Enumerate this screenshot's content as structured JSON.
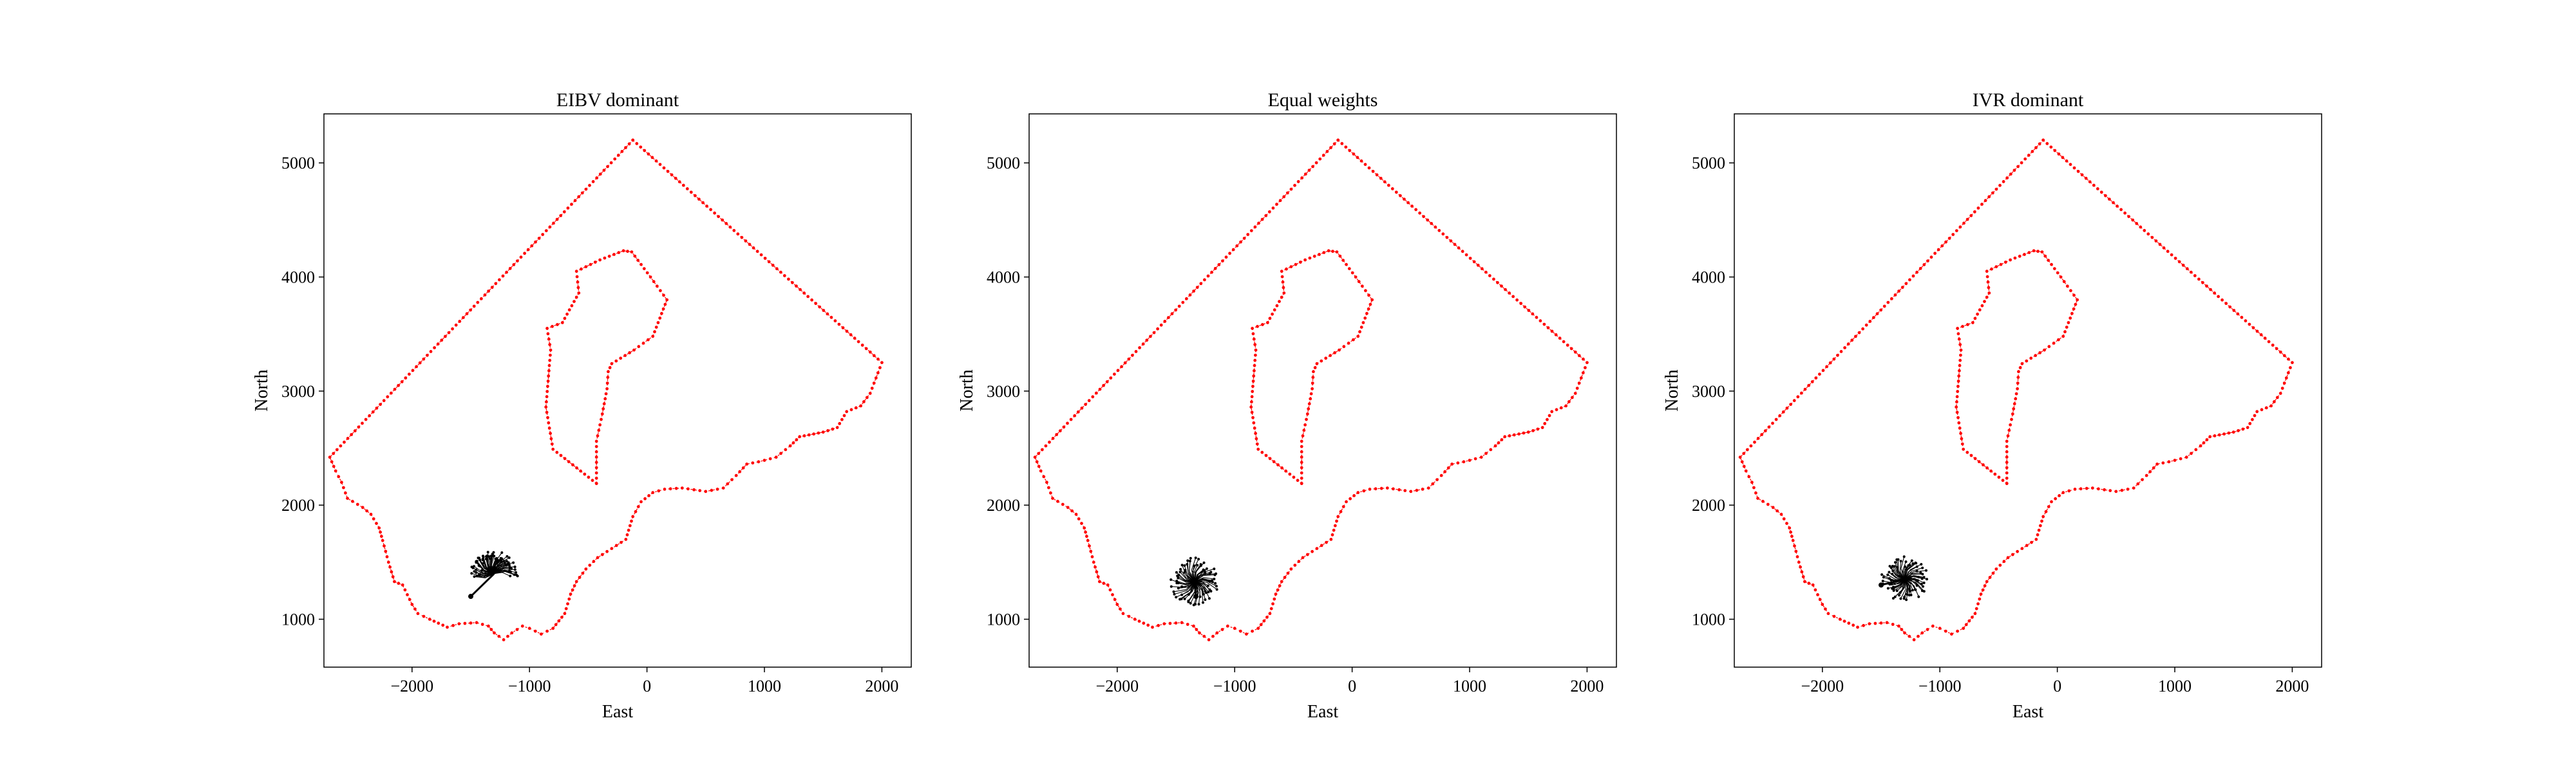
{
  "figure": {
    "background": "#ffffff",
    "boundary_color": "#ff0000",
    "path_color": "#000000"
  },
  "chart_data": [
    {
      "type": "scatter",
      "title": "EIBV dominant",
      "xlabel": "East",
      "ylabel": "North",
      "xlim": [
        -2750,
        2250
      ],
      "ylim": [
        580,
        5430
      ],
      "xticks": [
        -2000,
        -1000,
        0,
        1000,
        2000
      ],
      "yticks": [
        1000,
        2000,
        3000,
        4000,
        5000
      ],
      "xtick_labels": [
        "−2000",
        "−1000",
        "0",
        "1000",
        "2000"
      ],
      "ytick_labels": [
        "1000",
        "2000",
        "3000",
        "4000",
        "5000"
      ],
      "grid": false,
      "outer_boundary": [
        [
          -120,
          5200
        ],
        [
          2000,
          3250
        ],
        [
          1900,
          2980
        ],
        [
          1820,
          2870
        ],
        [
          1700,
          2820
        ],
        [
          1620,
          2680
        ],
        [
          1500,
          2640
        ],
        [
          1300,
          2600
        ],
        [
          1220,
          2520
        ],
        [
          1100,
          2420
        ],
        [
          950,
          2380
        ],
        [
          850,
          2360
        ],
        [
          760,
          2260
        ],
        [
          650,
          2150
        ],
        [
          500,
          2120
        ],
        [
          300,
          2150
        ],
        [
          150,
          2140
        ],
        [
          50,
          2110
        ],
        [
          -50,
          2030
        ],
        [
          -120,
          1900
        ],
        [
          -180,
          1700
        ],
        [
          -300,
          1620
        ],
        [
          -420,
          1540
        ],
        [
          -520,
          1440
        ],
        [
          -600,
          1330
        ],
        [
          -650,
          1220
        ],
        [
          -700,
          1050
        ],
        [
          -800,
          920
        ],
        [
          -900,
          870
        ],
        [
          -1000,
          920
        ],
        [
          -1060,
          940
        ],
        [
          -1150,
          880
        ],
        [
          -1220,
          820
        ],
        [
          -1300,
          880
        ],
        [
          -1350,
          940
        ],
        [
          -1450,
          970
        ],
        [
          -1600,
          960
        ],
        [
          -1700,
          930
        ],
        [
          -1850,
          1000
        ],
        [
          -1950,
          1050
        ],
        [
          -2000,
          1130
        ],
        [
          -2080,
          1300
        ],
        [
          -2150,
          1330
        ],
        [
          -2200,
          1500
        ],
        [
          -2250,
          1690
        ],
        [
          -2280,
          1800
        ],
        [
          -2350,
          1920
        ],
        [
          -2420,
          1980
        ],
        [
          -2550,
          2060
        ],
        [
          -2600,
          2200
        ],
        [
          -2650,
          2300
        ],
        [
          -2700,
          2420
        ],
        [
          -120,
          5200
        ]
      ],
      "inner_boundary": [
        [
          -430,
          2190
        ],
        [
          -800,
          2490
        ],
        [
          -860,
          2860
        ],
        [
          -820,
          3360
        ],
        [
          -850,
          3550
        ],
        [
          -720,
          3600
        ],
        [
          -580,
          3860
        ],
        [
          -600,
          4050
        ],
        [
          -400,
          4150
        ],
        [
          -200,
          4230
        ],
        [
          -130,
          4220
        ],
        [
          30,
          4000
        ],
        [
          170,
          3800
        ],
        [
          50,
          3480
        ],
        [
          -110,
          3360
        ],
        [
          -300,
          3240
        ],
        [
          -330,
          3170
        ],
        [
          -340,
          3020
        ],
        [
          -380,
          2800
        ],
        [
          -430,
          2560
        ],
        [
          -430,
          2190
        ]
      ],
      "path_center": [
        -1300,
        1400
      ],
      "path_start": [
        -1500,
        1200
      ],
      "path_radius": 200,
      "path_spread": [
        -10,
        190
      ]
    },
    {
      "type": "scatter",
      "title": "Equal weights",
      "xlabel": "East",
      "ylabel": "North",
      "xlim": [
        -2750,
        2250
      ],
      "ylim": [
        580,
        5430
      ],
      "xticks": [
        -2000,
        -1000,
        0,
        1000,
        2000
      ],
      "yticks": [
        1000,
        2000,
        3000,
        4000,
        5000
      ],
      "xtick_labels": [
        "−2000",
        "−1000",
        "0",
        "1000",
        "2000"
      ],
      "ytick_labels": [
        "1000",
        "2000",
        "3000",
        "4000",
        "5000"
      ],
      "grid": false,
      "outer_boundary": [
        [
          -120,
          5200
        ],
        [
          2000,
          3250
        ],
        [
          1900,
          2980
        ],
        [
          1820,
          2870
        ],
        [
          1700,
          2820
        ],
        [
          1620,
          2680
        ],
        [
          1500,
          2640
        ],
        [
          1300,
          2600
        ],
        [
          1220,
          2520
        ],
        [
          1100,
          2420
        ],
        [
          950,
          2380
        ],
        [
          850,
          2360
        ],
        [
          760,
          2260
        ],
        [
          650,
          2150
        ],
        [
          500,
          2120
        ],
        [
          300,
          2150
        ],
        [
          150,
          2140
        ],
        [
          50,
          2110
        ],
        [
          -50,
          2030
        ],
        [
          -120,
          1900
        ],
        [
          -180,
          1700
        ],
        [
          -300,
          1620
        ],
        [
          -420,
          1540
        ],
        [
          -520,
          1440
        ],
        [
          -600,
          1330
        ],
        [
          -650,
          1220
        ],
        [
          -700,
          1050
        ],
        [
          -800,
          920
        ],
        [
          -900,
          870
        ],
        [
          -1000,
          920
        ],
        [
          -1060,
          940
        ],
        [
          -1150,
          880
        ],
        [
          -1220,
          820
        ],
        [
          -1300,
          880
        ],
        [
          -1350,
          940
        ],
        [
          -1450,
          970
        ],
        [
          -1600,
          960
        ],
        [
          -1700,
          930
        ],
        [
          -1850,
          1000
        ],
        [
          -1950,
          1050
        ],
        [
          -2000,
          1130
        ],
        [
          -2080,
          1300
        ],
        [
          -2150,
          1330
        ],
        [
          -2200,
          1500
        ],
        [
          -2250,
          1690
        ],
        [
          -2280,
          1800
        ],
        [
          -2350,
          1920
        ],
        [
          -2420,
          1980
        ],
        [
          -2550,
          2060
        ],
        [
          -2600,
          2200
        ],
        [
          -2650,
          2300
        ],
        [
          -2700,
          2420
        ],
        [
          -120,
          5200
        ]
      ],
      "inner_boundary": [
        [
          -430,
          2190
        ],
        [
          -800,
          2490
        ],
        [
          -860,
          2860
        ],
        [
          -820,
          3360
        ],
        [
          -850,
          3550
        ],
        [
          -720,
          3600
        ],
        [
          -580,
          3860
        ],
        [
          -600,
          4050
        ],
        [
          -400,
          4150
        ],
        [
          -200,
          4230
        ],
        [
          -130,
          4220
        ],
        [
          30,
          4000
        ],
        [
          170,
          3800
        ],
        [
          50,
          3480
        ],
        [
          -110,
          3360
        ],
        [
          -300,
          3240
        ],
        [
          -330,
          3170
        ],
        [
          -340,
          3020
        ],
        [
          -380,
          2800
        ],
        [
          -430,
          2560
        ],
        [
          -430,
          2190
        ]
      ],
      "path_center": [
        -1340,
        1330
      ],
      "path_start": [
        -1330,
        1200
      ],
      "path_radius": 210,
      "path_spread": [
        0,
        360
      ]
    },
    {
      "type": "scatter",
      "title": "IVR dominant",
      "xlabel": "East",
      "ylabel": "North",
      "xlim": [
        -2750,
        2250
      ],
      "ylim": [
        580,
        5430
      ],
      "xticks": [
        -2000,
        -1000,
        0,
        1000,
        2000
      ],
      "yticks": [
        1000,
        2000,
        3000,
        4000,
        5000
      ],
      "xtick_labels": [
        "−2000",
        "−1000",
        "0",
        "1000",
        "2000"
      ],
      "ytick_labels": [
        "1000",
        "2000",
        "3000",
        "4000",
        "5000"
      ],
      "grid": false,
      "outer_boundary": [
        [
          -120,
          5200
        ],
        [
          2000,
          3250
        ],
        [
          1900,
          2980
        ],
        [
          1820,
          2870
        ],
        [
          1700,
          2820
        ],
        [
          1620,
          2680
        ],
        [
          1500,
          2640
        ],
        [
          1300,
          2600
        ],
        [
          1220,
          2520
        ],
        [
          1100,
          2420
        ],
        [
          950,
          2380
        ],
        [
          850,
          2360
        ],
        [
          760,
          2260
        ],
        [
          650,
          2150
        ],
        [
          500,
          2120
        ],
        [
          300,
          2150
        ],
        [
          150,
          2140
        ],
        [
          50,
          2110
        ],
        [
          -50,
          2030
        ],
        [
          -120,
          1900
        ],
        [
          -180,
          1700
        ],
        [
          -300,
          1620
        ],
        [
          -420,
          1540
        ],
        [
          -520,
          1440
        ],
        [
          -600,
          1330
        ],
        [
          -650,
          1220
        ],
        [
          -700,
          1050
        ],
        [
          -800,
          920
        ],
        [
          -900,
          870
        ],
        [
          -1000,
          920
        ],
        [
          -1060,
          940
        ],
        [
          -1150,
          880
        ],
        [
          -1220,
          820
        ],
        [
          -1300,
          880
        ],
        [
          -1350,
          940
        ],
        [
          -1450,
          970
        ],
        [
          -1600,
          960
        ],
        [
          -1700,
          930
        ],
        [
          -1850,
          1000
        ],
        [
          -1950,
          1050
        ],
        [
          -2000,
          1130
        ],
        [
          -2080,
          1300
        ],
        [
          -2150,
          1330
        ],
        [
          -2200,
          1500
        ],
        [
          -2250,
          1690
        ],
        [
          -2280,
          1800
        ],
        [
          -2350,
          1920
        ],
        [
          -2420,
          1980
        ],
        [
          -2550,
          2060
        ],
        [
          -2600,
          2200
        ],
        [
          -2650,
          2300
        ],
        [
          -2700,
          2420
        ],
        [
          -120,
          5200
        ]
      ],
      "inner_boundary": [
        [
          -430,
          2190
        ],
        [
          -800,
          2490
        ],
        [
          -860,
          2860
        ],
        [
          -820,
          3360
        ],
        [
          -850,
          3550
        ],
        [
          -720,
          3600
        ],
        [
          -580,
          3860
        ],
        [
          -600,
          4050
        ],
        [
          -400,
          4150
        ],
        [
          -200,
          4230
        ],
        [
          -130,
          4220
        ],
        [
          30,
          4000
        ],
        [
          170,
          3800
        ],
        [
          50,
          3480
        ],
        [
          -110,
          3360
        ],
        [
          -300,
          3240
        ],
        [
          -330,
          3170
        ],
        [
          -340,
          3020
        ],
        [
          -380,
          2800
        ],
        [
          -430,
          2560
        ],
        [
          -430,
          2190
        ]
      ],
      "path_center": [
        -1300,
        1350
      ],
      "path_start": [
        -1500,
        1300
      ],
      "path_radius": 200,
      "path_spread": [
        0,
        360
      ]
    }
  ]
}
